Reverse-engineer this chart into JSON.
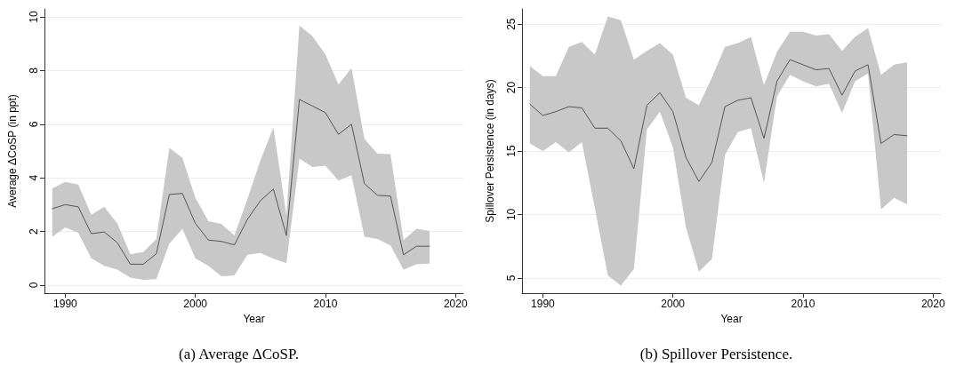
{
  "chart_data": [
    {
      "type": "line",
      "title": "(a) Average ΔCoSP.",
      "xlabel": "Year",
      "ylabel": "Average ΔCoSP (in ppt)",
      "x": [
        1989,
        1990,
        1991,
        1992,
        1993,
        1994,
        1995,
        1996,
        1997,
        1998,
        1999,
        2000,
        2001,
        2002,
        2003,
        2004,
        2005,
        2006,
        2007,
        2008,
        2009,
        2010,
        2011,
        2012,
        2013,
        2014,
        2015,
        2016,
        2017,
        2018
      ],
      "series": [
        {
          "color": "#555555",
          "values": [
            2.85,
            3.0,
            2.92,
            1.92,
            1.98,
            1.58,
            0.78,
            0.78,
            1.17,
            3.38,
            3.42,
            2.3,
            1.68,
            1.63,
            1.5,
            2.45,
            3.15,
            3.58,
            1.85,
            6.92,
            6.68,
            6.43,
            5.62,
            6.0,
            3.78,
            3.35,
            3.32,
            1.13,
            1.45,
            1.45
          ],
          "lower": [
            1.8,
            2.15,
            1.95,
            1.0,
            0.72,
            0.58,
            0.28,
            0.2,
            0.22,
            1.55,
            2.1,
            1.0,
            0.72,
            0.33,
            0.36,
            1.13,
            1.2,
            0.98,
            0.82,
            4.72,
            4.4,
            4.45,
            3.9,
            4.1,
            1.8,
            1.72,
            1.48,
            0.58,
            0.78,
            0.8
          ],
          "upper": [
            3.6,
            3.85,
            3.75,
            2.62,
            2.92,
            2.3,
            1.15,
            1.23,
            1.72,
            5.12,
            4.75,
            3.25,
            2.38,
            2.28,
            1.85,
            3.2,
            4.65,
            5.88,
            2.6,
            9.68,
            9.28,
            8.6,
            7.48,
            8.1,
            5.45,
            4.9,
            4.88,
            1.68,
            2.1,
            2.02
          ]
        }
      ],
      "xlim": [
        1988.4,
        2020.6
      ],
      "ylim": [
        -0.3,
        10.3
      ],
      "xticks": [
        1990,
        2000,
        2010,
        2020
      ],
      "yticks": [
        0,
        2,
        4,
        6,
        8,
        10
      ],
      "grid": "y",
      "marker": "none",
      "line_style": "solid"
    },
    {
      "type": "line",
      "title": "(b) Spillover Persistence.",
      "xlabel": "Year",
      "ylabel": "Spillover Persistence (in days)",
      "x": [
        1989,
        1990,
        1991,
        1992,
        1993,
        1994,
        1995,
        1996,
        1997,
        1998,
        1999,
        2000,
        2001,
        2002,
        2003,
        2004,
        2005,
        2006,
        2007,
        2008,
        2009,
        2010,
        2011,
        2012,
        2013,
        2014,
        2015,
        2016,
        2017,
        2018
      ],
      "series": [
        {
          "color": "#555555",
          "values": [
            18.7,
            17.8,
            18.1,
            18.5,
            18.4,
            16.8,
            16.8,
            15.8,
            13.6,
            18.6,
            19.6,
            18.1,
            14.5,
            12.6,
            14.1,
            18.5,
            19.0,
            19.2,
            16.0,
            20.5,
            22.2,
            21.8,
            21.4,
            21.5,
            19.4,
            21.3,
            21.8,
            15.6,
            16.3,
            16.2
          ],
          "lower": [
            15.6,
            15.0,
            15.7,
            14.9,
            15.7,
            10.5,
            5.2,
            4.4,
            5.7,
            16.7,
            18.1,
            15.3,
            9.0,
            5.5,
            6.5,
            14.7,
            16.5,
            16.8,
            12.5,
            19.3,
            21.0,
            20.5,
            20.1,
            20.3,
            18.0,
            20.5,
            21.1,
            10.4,
            11.3,
            10.8
          ],
          "upper": [
            21.7,
            20.9,
            20.9,
            23.2,
            23.6,
            22.6,
            25.6,
            25.3,
            22.2,
            22.9,
            23.5,
            22.6,
            19.2,
            18.6,
            20.8,
            23.2,
            23.5,
            24.0,
            20.2,
            22.8,
            24.4,
            24.4,
            24.1,
            24.2,
            22.9,
            24.0,
            24.7,
            21.0,
            21.8,
            22.0
          ]
        }
      ],
      "xlim": [
        1988.4,
        2020.6
      ],
      "ylim": [
        3.8,
        26.2
      ],
      "xticks": [
        1990,
        2000,
        2010,
        2020
      ],
      "yticks": [
        5,
        10,
        15,
        20,
        25
      ],
      "grid": "y",
      "marker": "none",
      "line_style": "solid"
    }
  ]
}
